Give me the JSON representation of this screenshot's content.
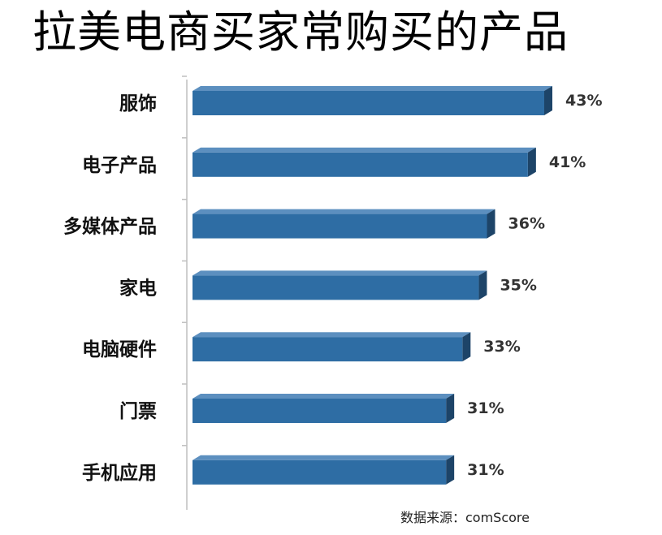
{
  "title": "拉美电商买家常购买的产品",
  "source": "数据来源：comScore",
  "colors": {
    "bar_front": "#2E6DA4",
    "bar_top": "#5C8FBF",
    "bar_side": "#1D4468",
    "axis": "#BFBFBF"
  },
  "chart_data": {
    "type": "bar",
    "orientation": "horizontal",
    "title": "拉美电商买家常购买的产品",
    "categories": [
      "服饰",
      "电子产品",
      "多媒体产品",
      "家电",
      "电脑硬件",
      "门票",
      "手机应用"
    ],
    "values": [
      43,
      41,
      36,
      35,
      33,
      31,
      31
    ],
    "value_labels": [
      "43%",
      "41%",
      "36%",
      "35%",
      "33%",
      "31%",
      "31%"
    ],
    "unit": "%",
    "xlabel": "",
    "ylabel": "",
    "xlim": [
      0,
      43
    ],
    "grid": false,
    "legend": "none"
  }
}
